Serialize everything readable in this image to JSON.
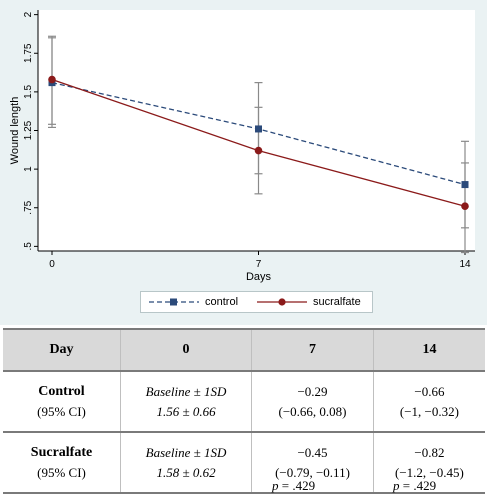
{
  "chart_data": {
    "type": "line",
    "xlabel": "Days",
    "ylabel": "Wound length",
    "x": [
      0,
      7,
      14
    ],
    "xticks": [
      "0",
      "7",
      "14"
    ],
    "yticks": [
      ".5",
      ".75",
      "1",
      "1.25",
      "1.5",
      "1.75",
      "2"
    ],
    "ylim": [
      0.47,
      2.03
    ],
    "grid": false,
    "legend_position": "bottom",
    "series": [
      {
        "name": "control",
        "color": "#2b4a7a",
        "style": "dashed",
        "marker": "square",
        "values": [
          1.56,
          1.26,
          0.9
        ],
        "ci_low": [
          1.27,
          0.97,
          0.62
        ],
        "ci_high": [
          1.85,
          1.56,
          1.18
        ]
      },
      {
        "name": "sucralfate",
        "color": "#8b1a1a",
        "style": "solid",
        "marker": "circle",
        "values": [
          1.58,
          1.12,
          0.76
        ],
        "ci_low": [
          1.29,
          0.84,
          0.46
        ],
        "ci_high": [
          1.86,
          1.4,
          1.04
        ]
      }
    ]
  },
  "table": {
    "headers": [
      "Day",
      "0",
      "7",
      "14"
    ],
    "rows": [
      {
        "name": "Control",
        "sub": "(95% CI)",
        "baseline_label": "Baseline ± 1SD",
        "baseline_value": "1.56 ± 0.66",
        "day7_value": "−0.29",
        "day7_ci": "(−0.66, 0.08)",
        "day14_value": "−0.66",
        "day14_ci": "(−1, −0.32)"
      },
      {
        "name": "Sucralfate",
        "sub": "(95% CI)",
        "baseline_label": "Baseline ± 1SD",
        "baseline_value": "1.58 ± 0.62",
        "day7_value": "−0.45",
        "day7_ci": "(−0.79, −0.11)",
        "day14_value": "−0.82",
        "day14_ci": "(−1.2, −0.45)"
      }
    ],
    "pvalues": [
      {
        "label": "p",
        "value": " = .429"
      },
      {
        "label": "p",
        "value": " = .429"
      }
    ]
  }
}
